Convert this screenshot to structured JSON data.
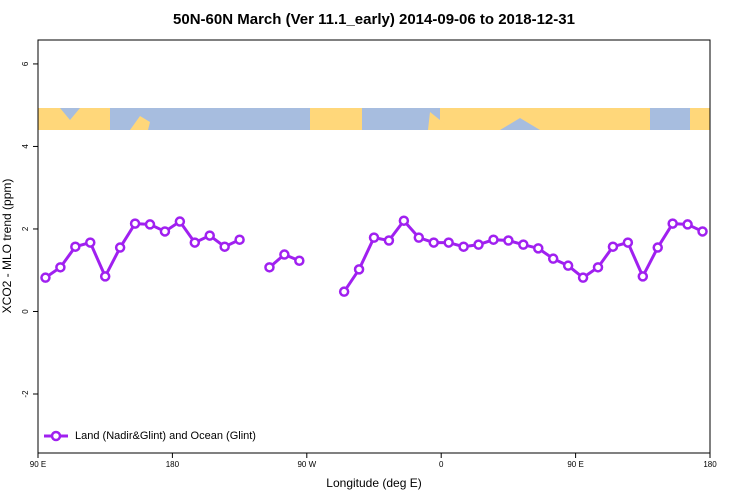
{
  "chart_data": {
    "type": "line",
    "title": "50N-60N March (Ver 11.1_early)   2014-09-06 to 2018-12-31",
    "xlabel": "Longitude (deg E)",
    "ylabel": "XCO2 - MLO trend (ppm)",
    "x": [
      95,
      105,
      115,
      125,
      135,
      145,
      155,
      165,
      175,
      185,
      195,
      205,
      215,
      225,
      235,
      245,
      255,
      265,
      275,
      285,
      295,
      305,
      315,
      325,
      335,
      345,
      355,
      365,
      375,
      385,
      395,
      405,
      415,
      425,
      435,
      445,
      455,
      465,
      475,
      485,
      495,
      505,
      515,
      525,
      535
    ],
    "series": [
      {
        "name": "Land (Nadir&Glint) and Ocean (Glint)",
        "color": "#a020f0",
        "values": [
          0.82,
          1.07,
          1.57,
          1.67,
          0.85,
          1.55,
          2.13,
          2.11,
          1.94,
          2.18,
          1.67,
          1.84,
          1.57,
          1.74,
          null,
          1.07,
          1.38,
          1.23,
          null,
          null,
          0.48,
          1.02,
          1.79,
          1.72,
          2.2,
          1.79,
          1.67,
          1.67,
          1.57,
          1.62,
          1.74,
          1.72,
          1.62,
          1.53,
          1.28,
          1.11,
          0.82,
          1.07,
          1.57,
          1.67,
          0.85,
          1.55,
          2.13,
          2.11,
          1.94
        ]
      }
    ],
    "xlim": [
      90,
      540
    ],
    "xticks": [
      {
        "value": 90,
        "label": "90 E"
      },
      180,
      {
        "value": 270,
        "label": "90 W"
      },
      {
        "value": 360,
        "label": "0"
      },
      {
        "value": 450,
        "label": "90 E"
      },
      {
        "value": 540,
        "label": "180"
      }
    ],
    "ylim": [
      -3.43,
      6.58
    ],
    "yticks": [
      -2,
      0,
      2,
      4,
      6
    ],
    "legend": "bottom-left"
  }
}
